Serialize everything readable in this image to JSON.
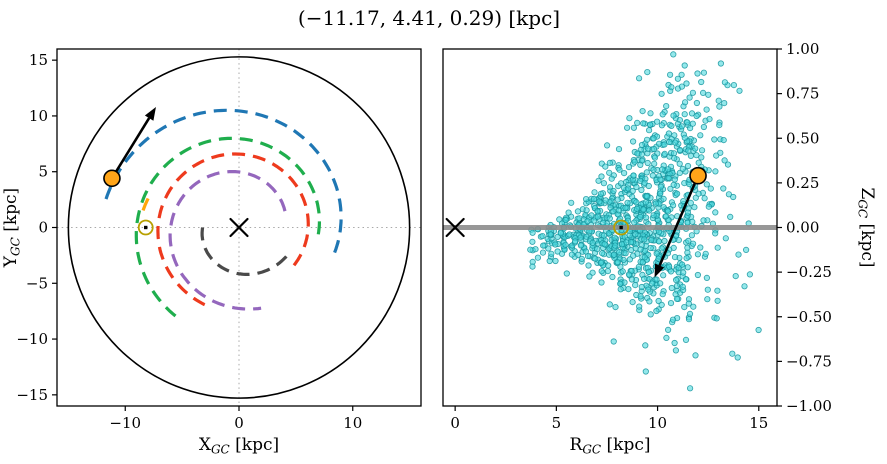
{
  "title": "(−11.17, 4.41, 0.29) [kpc]",
  "chart_data": [
    {
      "id": "galactic-plane-xy",
      "type": "line",
      "description": "Top-down Milky Way map: dashed spiral arms, 15 kpc boundary circle, Galactic Center (x), Sun (circled dot), target star (orange) with motion arrow",
      "xlabel": {
        "base": "X",
        "sub": "GC",
        "unit": "[kpc]"
      },
      "ylabel": {
        "base": "Y",
        "sub": "GC",
        "unit": "[kpc]"
      },
      "xlim": [
        -16,
        16
      ],
      "ylim": [
        -16,
        16
      ],
      "xticks": {
        "values": [
          -10,
          0,
          10
        ],
        "labels": [
          "−10",
          "0",
          "10"
        ]
      },
      "yticks": {
        "values": [
          15,
          10,
          5,
          0,
          -5,
          -10,
          -15
        ],
        "labels": [
          "15",
          "10",
          "5",
          "0",
          "−5",
          "−10",
          "−15"
        ]
      },
      "grid": "dotted-crosshair-at-zero",
      "boundary_circle": {
        "radius": 15,
        "color": "#000000"
      },
      "spiral_arms": [
        {
          "name": "outer",
          "color": "#1f77b4",
          "theta_start": -15,
          "theta_end": 168,
          "r_start": 8.7,
          "winding": 0.1
        },
        {
          "name": "perseus",
          "color": "#1fae4d",
          "theta_start": -5,
          "theta_end": 235,
          "r_start": 7.0,
          "winding": 0.078
        },
        {
          "name": "sag-car",
          "color": "#ee3a1d",
          "theta_start": -35,
          "theta_end": 250,
          "r_start": 5.9,
          "winding": 0.05
        },
        {
          "name": "scutum",
          "color": "#9467bd",
          "theta_start": 20,
          "theta_end": 285,
          "r_start": 4.3,
          "winding": 0.12
        },
        {
          "name": "norma",
          "color": "#4a4a4a",
          "theta_start": 180,
          "theta_end": 335,
          "r_start": 3.2,
          "winding": 0.165
        },
        {
          "name": "local",
          "color": "#ffa60a",
          "theta_start": 162,
          "theta_end": 174,
          "r_start": 8.4,
          "winding": 0.15
        }
      ],
      "markers": {
        "galactic_center": {
          "x": 0,
          "y": 0,
          "symbol": "x",
          "color": "#000000"
        },
        "sun": {
          "x": -8.2,
          "y": 0,
          "symbol": "circled-dot",
          "color": "#b8a000"
        },
        "object": {
          "x": -11.17,
          "y": 4.41,
          "color": "#ffa519",
          "edge": "#000000"
        },
        "arrow": {
          "from": [
            -11.17,
            4.41
          ],
          "to": [
            -7.3,
            10.8
          ],
          "color": "#000000"
        }
      }
    },
    {
      "id": "r-z-plane",
      "type": "scatter",
      "description": "Vertical height Z vs Galactocentric radius R: teal star sample flaring with radius, gray midplane line, Galactic Center (x), Sun (circled dot), target star (orange) with motion arrow",
      "xlabel": {
        "base": "R",
        "sub": "GC",
        "unit": "[kpc]"
      },
      "ylabel": {
        "base": "Z",
        "sub": "GC",
        "unit": "[kpc]"
      },
      "ylabel_side": "right",
      "xlim": [
        -0.6,
        15.9
      ],
      "ylim": [
        -1,
        1
      ],
      "xticks": {
        "values": [
          0,
          5,
          10,
          15
        ],
        "labels": [
          "0",
          "5",
          "10",
          "15"
        ]
      },
      "yticks": {
        "values": [
          1,
          0.75,
          0.5,
          0.25,
          0,
          -0.25,
          -0.5,
          -0.75,
          -1
        ],
        "labels": [
          "1.00",
          "0.75",
          "0.50",
          "0.25",
          "0.00",
          "−0.25",
          "−0.50",
          "−0.75",
          "−1.00"
        ]
      },
      "midplane_line": {
        "z": 0,
        "color": "#8c8c8c",
        "width": 5
      },
      "points_style": {
        "fill": "#4dd9de",
        "edge": "#13939c",
        "radius": 2.7,
        "opacity": 0.6
      },
      "points_distribution": {
        "seed": 20240613,
        "n": 980,
        "r_mean": 8.7,
        "r_sigma": 2.2,
        "r_min": 3.7,
        "r_max": 15.7,
        "z_sigma_base": 0.05,
        "z_flare_per_kpc": 0.045,
        "z_mean_slope": 0.02,
        "extra_cloud": {
          "fraction": 0.12,
          "r_mean": 11.2,
          "r_sigma": 1.3,
          "z_mean": 0.5,
          "z_sigma": 0.22
        }
      },
      "markers": {
        "galactic_center": {
          "x": 0,
          "y": 0,
          "symbol": "x",
          "color": "#000000"
        },
        "sun": {
          "x": 8.2,
          "y": 0,
          "symbol": "circled-dot",
          "color": "#b8a000"
        },
        "object": {
          "x": 12.0,
          "y": 0.29,
          "color": "#ffa519",
          "edge": "#000000"
        },
        "arrow": {
          "from": [
            12.0,
            0.29
          ],
          "to": [
            9.85,
            -0.28
          ],
          "color": "#000000"
        }
      }
    }
  ]
}
